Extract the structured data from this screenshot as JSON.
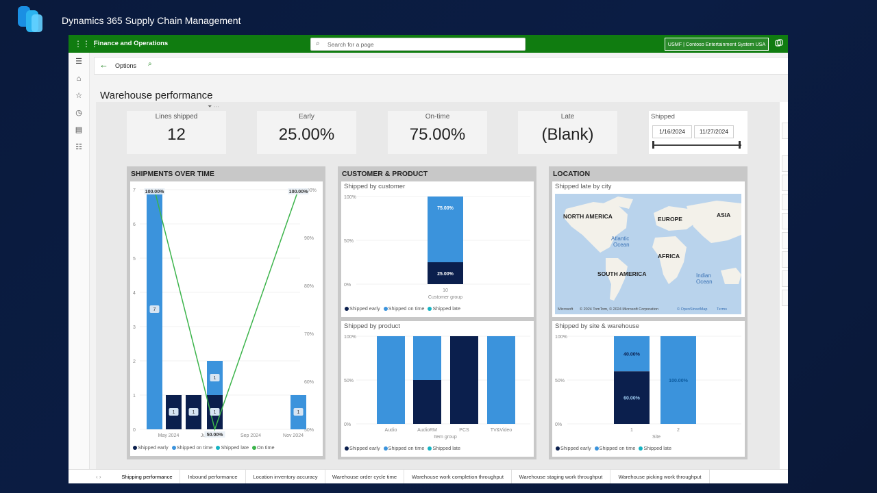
{
  "slide": {
    "title": "Dynamics 365 Supply Chain Management"
  },
  "topbar": {
    "app_name": "Finance and Operations",
    "search_placeholder": "Search for a page",
    "company": "USMF | Contoso Entertainment System USA"
  },
  "actionbar": {
    "options_label": "Options"
  },
  "page": {
    "title": "Warehouse performance"
  },
  "colors": {
    "brand_green": "#107c10",
    "shipped_early": "#0b1f4d",
    "shipped_on_time": "#3b93dc",
    "shipped_late": "#15b3c2",
    "on_time_line": "#3cb44b"
  },
  "kpis": [
    {
      "label": "Lines shipped",
      "value": "12"
    },
    {
      "label": "Early",
      "value": "25.00%"
    },
    {
      "label": "On-time",
      "value": "75.00%"
    },
    {
      "label": "Late",
      "value": "(Blank)"
    }
  ],
  "slicer": {
    "label": "Shipped",
    "start": "1/16/2024",
    "end": "11/27/2024"
  },
  "sections": {
    "time": "SHIPMENTS OVER TIME",
    "customer": "CUSTOMER & PRODUCT",
    "location": "LOCATION"
  },
  "legend": {
    "early": "Shipped early",
    "on_time": "Shipped on time",
    "late": "Shipped late",
    "on_time_line": "On time"
  },
  "shipments_over_time": {
    "left_ticks": [
      "7",
      "6",
      "5",
      "4",
      "3",
      "2",
      "1",
      "0"
    ],
    "right_ticks": [
      "100%",
      "90%",
      "80%",
      "70%",
      "60%",
      "50%"
    ],
    "x_labels": [
      "May 2024",
      "Jul 2024",
      "Sep 2024",
      "Nov 2024"
    ],
    "bar_labels": {
      "a": "7",
      "b": "1",
      "c": "1",
      "d": "1",
      "e": "1",
      "f": "1"
    },
    "line_labels": {
      "start": "100.00%",
      "mid": "50.00%",
      "end": "100.00%"
    }
  },
  "shipped_by_customer": {
    "title": "Shipped by customer",
    "y_ticks": [
      "100%",
      "50%",
      "0%"
    ],
    "category": "10",
    "axis_label": "Customer group",
    "labels": {
      "on_time": "75.00%",
      "early": "25.00%"
    }
  },
  "shipped_by_product": {
    "title": "Shipped by product",
    "y_ticks": [
      "100%",
      "50%",
      "0%"
    ],
    "categories": [
      "Audio",
      "AudioRM",
      "PCS",
      "TV&Video"
    ],
    "axis_label": "Item group"
  },
  "map": {
    "title": "Shipped late by city",
    "labels": {
      "na": "NORTH AMERICA",
      "eu": "EUROPE",
      "asia": "ASIA",
      "africa": "AFRICA",
      "sa": "SOUTH AMERICA",
      "atl1": "Atlantic",
      "atl2": "Ocean",
      "ind1": "Indian",
      "ind2": "Ocean"
    },
    "attribution": "© 2024 TomTom, © 2024 Microsoft Corporation",
    "osm": "© OpenStreetMap",
    "terms": "Terms",
    "ms": "Microsoft"
  },
  "shipped_by_site": {
    "title": "Shipped by site & warehouse",
    "y_ticks": [
      "100%",
      "50%",
      "0%"
    ],
    "categories": [
      "1",
      "2"
    ],
    "axis_label": "Site",
    "labels": {
      "s1_top": "40.00%",
      "s1_bottom": "60.00%",
      "s2": "100.00%"
    }
  },
  "tabs": [
    "Shipping performance",
    "Inbound performance",
    "Location inventory accuracy",
    "Warehouse order cycle time",
    "Warehouse work completion throughput",
    "Warehouse staging work throughput",
    "Warehouse picking work throughput"
  ],
  "chart_data": [
    {
      "type": "bar",
      "title": "SHIPMENTS OVER TIME",
      "note": "stacked bars count of lines + On time % line",
      "series": [
        {
          "name": "Shipped early",
          "x": [
            "May 2024",
            "Jun 2024",
            "Jul 2024"
          ],
          "values": [
            1,
            1,
            1
          ]
        },
        {
          "name": "Shipped on time",
          "x": [
            "Apr 2024",
            "Jul 2024",
            "Nov 2024"
          ],
          "values": [
            7,
            1,
            1
          ]
        },
        {
          "name": "On time",
          "x": [
            "Apr 2024",
            "Jul 2024",
            "Nov 2024"
          ],
          "values": [
            100,
            50,
            100
          ]
        }
      ],
      "ylim": [
        0,
        7
      ]
    },
    {
      "type": "bar",
      "title": "Shipped by customer",
      "categories": [
        "10"
      ],
      "series": [
        {
          "name": "Shipped early",
          "values": [
            25
          ]
        },
        {
          "name": "Shipped on time",
          "values": [
            75
          ]
        }
      ],
      "xlabel": "Customer group"
    },
    {
      "type": "bar",
      "title": "Shipped by product",
      "categories": [
        "Audio",
        "AudioRM",
        "PCS",
        "TV&Video"
      ],
      "series": [
        {
          "name": "Shipped early",
          "values": [
            0,
            50,
            100,
            0
          ]
        },
        {
          "name": "Shipped on time",
          "values": [
            100,
            50,
            0,
            100
          ]
        }
      ],
      "xlabel": "Item group"
    },
    {
      "type": "bar",
      "title": "Shipped by site & warehouse",
      "categories": [
        "1",
        "2"
      ],
      "series": [
        {
          "name": "Shipped early",
          "values": [
            60,
            0
          ]
        },
        {
          "name": "Shipped on time",
          "values": [
            40,
            100
          ]
        }
      ],
      "xlabel": "Site"
    }
  ]
}
